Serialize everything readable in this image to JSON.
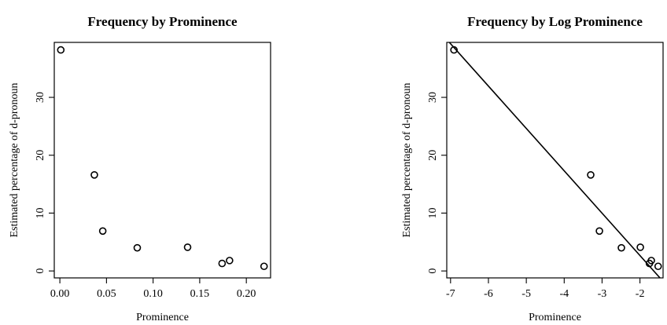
{
  "chart_data": [
    {
      "type": "scatter",
      "title": "Frequency by Prominence",
      "xlabel": "Prominence",
      "ylabel": "Estimated percentage of d-pronoun",
      "xlim": [
        -0.006,
        0.226
      ],
      "ylim": [
        -1.2,
        39.5
      ],
      "xticks": [
        0.0,
        0.05,
        0.1,
        0.15,
        0.2
      ],
      "xtick_labels": [
        "0.00",
        "0.05",
        "0.10",
        "0.15",
        "0.20"
      ],
      "yticks": [
        0,
        10,
        20,
        30
      ],
      "ytick_labels": [
        "0",
        "10",
        "20",
        "30"
      ],
      "grid": false,
      "points": [
        {
          "x": 0.001,
          "y": 38.2
        },
        {
          "x": 0.037,
          "y": 16.6
        },
        {
          "x": 0.046,
          "y": 6.9
        },
        {
          "x": 0.083,
          "y": 4.0
        },
        {
          "x": 0.137,
          "y": 4.1
        },
        {
          "x": 0.174,
          "y": 1.3
        },
        {
          "x": 0.182,
          "y": 1.8
        },
        {
          "x": 0.219,
          "y": 0.8
        }
      ]
    },
    {
      "type": "scatter",
      "title": "Frequency by Log Prominence",
      "xlabel": "Prominence",
      "ylabel": "Estimated percentage of d-pronoun",
      "xlim": [
        -7.1,
        -1.39
      ],
      "ylim": [
        -1.2,
        39.5
      ],
      "xticks": [
        -7,
        -6,
        -5,
        -4,
        -3,
        -2
      ],
      "xtick_labels": [
        "-7",
        "-6",
        "-5",
        "-4",
        "-3",
        "-2"
      ],
      "yticks": [
        0,
        10,
        20,
        30
      ],
      "ytick_labels": [
        "0",
        "10",
        "20",
        "30"
      ],
      "grid": false,
      "points": [
        {
          "x": -6.91,
          "y": 38.2
        },
        {
          "x": -3.3,
          "y": 16.6
        },
        {
          "x": -3.07,
          "y": 6.9
        },
        {
          "x": -2.49,
          "y": 4.0
        },
        {
          "x": -1.99,
          "y": 4.1
        },
        {
          "x": -1.75,
          "y": 1.3
        },
        {
          "x": -1.7,
          "y": 1.8
        },
        {
          "x": -1.52,
          "y": 0.8
        }
      ],
      "fit_line": {
        "x": [
          -7.1,
          -1.39
        ],
        "y": [
          40.0,
          -1.8
        ]
      }
    }
  ]
}
